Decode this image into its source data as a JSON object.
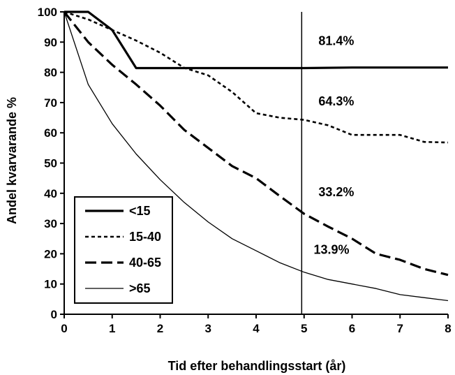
{
  "chart_data": {
    "type": "line",
    "xlabel": "Tid efter behandlingsstart (år)",
    "ylabel": "Andel kvarvarande %",
    "xlim": [
      0,
      8
    ],
    "ylim": [
      0,
      100
    ],
    "x_ticks": [
      "0",
      "1",
      "2",
      "3",
      "4",
      "5",
      "6",
      "7",
      "8"
    ],
    "y_ticks": [
      "0",
      "10",
      "20",
      "30",
      "40",
      "50",
      "60",
      "70",
      "80",
      "90",
      "100"
    ],
    "grid": false,
    "legend_position": "bottom-left",
    "reference_line_x": 4.95,
    "series": [
      {
        "name": "<15",
        "style": "thick-solid",
        "x": [
          0,
          0.5,
          1,
          1.5,
          2,
          3,
          4,
          5,
          6,
          7,
          8
        ],
        "y": [
          100,
          100,
          94,
          81.4,
          81.4,
          81.4,
          81.4,
          81.4,
          81.6,
          81.6,
          81.6
        ]
      },
      {
        "name": "15-40",
        "style": "dotted",
        "x": [
          0,
          0.5,
          1,
          1.5,
          2,
          2.5,
          3,
          3.5,
          4,
          4.5,
          5,
          5.5,
          6,
          6.5,
          7,
          7.5,
          8
        ],
        "y": [
          100,
          97.5,
          94,
          90.5,
          86.5,
          81.5,
          79,
          73.5,
          66.5,
          65,
          64.3,
          62.5,
          59.3,
          59.3,
          59.3,
          57,
          56.8
        ]
      },
      {
        "name": "40-65",
        "style": "long-dash",
        "x": [
          0,
          0.5,
          1,
          1.5,
          2,
          2.5,
          3,
          3.5,
          4,
          4.5,
          5,
          5.5,
          6,
          6.5,
          7,
          7.5,
          8
        ],
        "y": [
          100,
          90,
          82.5,
          76,
          69,
          61,
          55,
          49,
          45,
          39,
          33.2,
          29,
          25,
          20,
          18,
          15,
          13
        ]
      },
      {
        "name": ">65",
        "style": "thin-solid",
        "x": [
          0,
          0.5,
          1,
          1.5,
          2,
          2.5,
          3,
          3.5,
          4,
          4.5,
          5,
          5.5,
          6,
          6.5,
          7,
          7.5,
          8
        ],
        "y": [
          100,
          76,
          63,
          53,
          44.5,
          37,
          30.5,
          25,
          21,
          17,
          13.9,
          11.5,
          10,
          8.5,
          6.5,
          5.5,
          4.5
        ]
      }
    ],
    "annotations": [
      {
        "text": "81.4%",
        "x": 5.3,
        "y": 89
      },
      {
        "text": "64.3%",
        "x": 5.3,
        "y": 69
      },
      {
        "text": "33.2%",
        "x": 5.3,
        "y": 39
      },
      {
        "text": "13.9%",
        "x": 5.2,
        "y": 20
      }
    ]
  }
}
